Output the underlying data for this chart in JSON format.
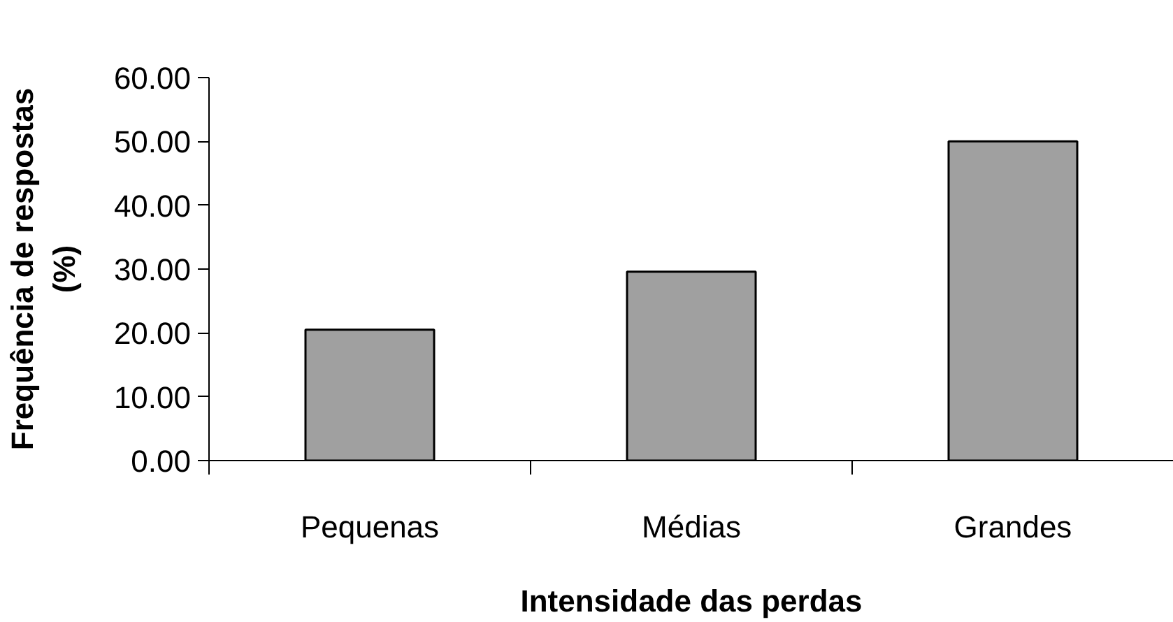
{
  "chart_data": {
    "type": "bar",
    "xlabel": "Intensidade das perdas",
    "ylabel": "Frequência de respostas\n(%)",
    "categories": [
      "Pequenas",
      "Médias",
      "Grandes"
    ],
    "values": [
      20.5,
      29.6,
      50.0
    ],
    "color": "#a0a0a0",
    "ylim": [
      0,
      60
    ],
    "yticks": [
      {
        "value": 0,
        "label": "0.00"
      },
      {
        "value": 10,
        "label": "10.00"
      },
      {
        "value": 20,
        "label": "20.00"
      },
      {
        "value": 30,
        "label": "30.00"
      },
      {
        "value": 40,
        "label": "40.00"
      },
      {
        "value": 50,
        "label": "50.00"
      },
      {
        "value": 60,
        "label": "60.00"
      }
    ],
    "grid": false
  }
}
